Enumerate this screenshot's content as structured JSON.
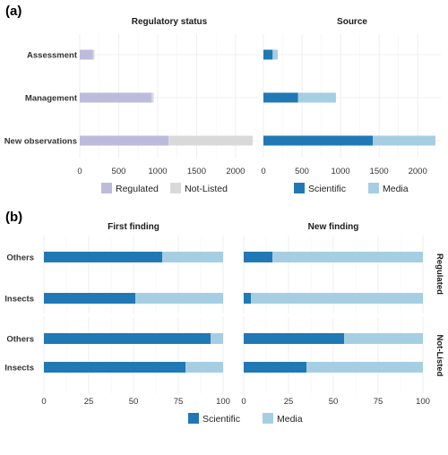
{
  "panel_labels": {
    "a": "(a)",
    "b": "(b)"
  },
  "colors": {
    "regulated": "#bdbbdc",
    "not_listed": "#d9d9d9",
    "scientific": "#2079b4",
    "media": "#a6cee3"
  },
  "legends": {
    "a_left": [
      {
        "key": "regulated",
        "label": "Regulated"
      },
      {
        "key": "not_listed",
        "label": "Not-Listed"
      }
    ],
    "a_right": [
      {
        "key": "scientific",
        "label": "Scientific"
      },
      {
        "key": "media",
        "label": "Media"
      }
    ],
    "b": [
      {
        "key": "scientific",
        "label": "Scientific"
      },
      {
        "key": "media",
        "label": "Media"
      }
    ]
  },
  "chart_data": [
    {
      "id": "a_left",
      "type": "bar",
      "orientation": "horizontal",
      "stacked": true,
      "title": "Regulatory status",
      "categories": [
        "Assessment",
        "Management",
        "New observations"
      ],
      "series": [
        {
          "name": "Regulated",
          "color_key": "regulated",
          "values": [
            170,
            920,
            1140
          ]
        },
        {
          "name": "Not-Listed",
          "color_key": "not_listed",
          "values": [
            20,
            30,
            1080
          ]
        }
      ],
      "xlim": [
        0,
        2300
      ],
      "xticks": [
        0,
        500,
        1000,
        1500,
        2000
      ],
      "grid": true,
      "legend": "bottom"
    },
    {
      "id": "a_right",
      "type": "bar",
      "orientation": "horizontal",
      "stacked": true,
      "title": "Source",
      "categories": [
        "Assessment",
        "Management",
        "New observations"
      ],
      "series": [
        {
          "name": "Scientific",
          "color_key": "scientific",
          "values": [
            120,
            450,
            1420
          ]
        },
        {
          "name": "Media",
          "color_key": "media",
          "values": [
            65,
            490,
            810
          ]
        }
      ],
      "xlim": [
        0,
        2300
      ],
      "xticks": [
        0,
        500,
        1000,
        1500,
        2000
      ],
      "grid": true,
      "legend": "bottom"
    },
    {
      "id": "b",
      "type": "bar",
      "orientation": "horizontal",
      "stacked": true,
      "percent": true,
      "columns": [
        "First finding",
        "New finding"
      ],
      "rows": [
        "Regulated",
        "Not-Listed"
      ],
      "categories": [
        "Others",
        "Insects"
      ],
      "series_names": [
        "Scientific",
        "Media"
      ],
      "xlim": [
        0,
        100
      ],
      "xticks": [
        0,
        25,
        50,
        75,
        100
      ],
      "cells": [
        {
          "column": "First finding",
          "row": "Regulated",
          "scientific": [
            66,
            51
          ]
        },
        {
          "column": "New finding",
          "row": "Regulated",
          "scientific": [
            16,
            4
          ]
        },
        {
          "column": "First finding",
          "row": "Not-Listed",
          "scientific": [
            93,
            79
          ]
        },
        {
          "column": "New finding",
          "row": "Not-Listed",
          "scientific": [
            56,
            35
          ]
        }
      ],
      "grid": true,
      "legend": "bottom"
    }
  ]
}
